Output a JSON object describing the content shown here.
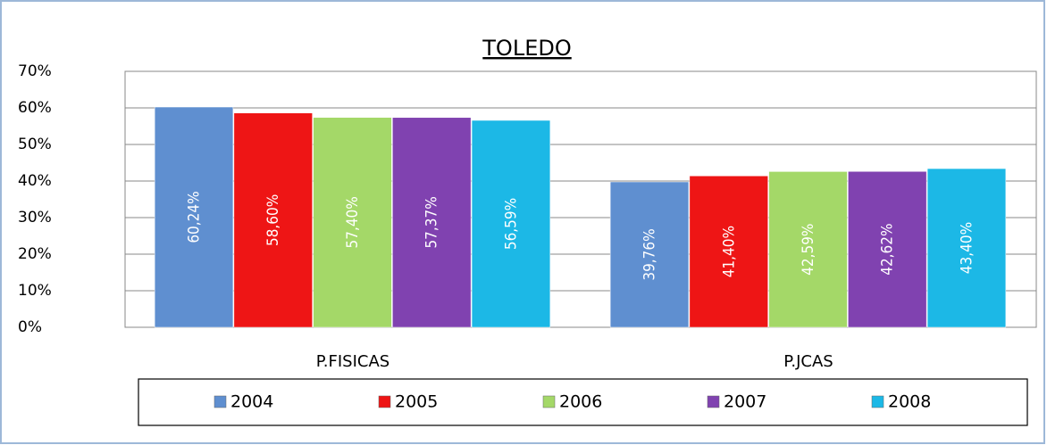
{
  "chart_data": {
    "type": "bar",
    "title": "TOLEDO",
    "categories": [
      "P.FISICAS",
      "P.JCAS"
    ],
    "series": [
      {
        "name": "2004",
        "color": "#5f8fd0",
        "values": [
          60.24,
          39.76
        ],
        "value_labels": [
          "60,24%",
          "39,76%"
        ]
      },
      {
        "name": "2005",
        "color": "#ee1515",
        "values": [
          58.6,
          41.4
        ],
        "value_labels": [
          "58,60%",
          "41,40%"
        ]
      },
      {
        "name": "2006",
        "color": "#a4d868",
        "values": [
          57.4,
          42.59
        ],
        "value_labels": [
          "57,40%",
          "42,59%"
        ]
      },
      {
        "name": "2007",
        "color": "#8042b0",
        "values": [
          57.37,
          42.62
        ],
        "value_labels": [
          "57,37%",
          "42,62%"
        ]
      },
      {
        "name": "2008",
        "color": "#1cb8e6",
        "values": [
          56.59,
          43.4
        ],
        "value_labels": [
          "56,59%",
          "43,40%"
        ]
      }
    ],
    "ylim": [
      0,
      70
    ],
    "yticks": [
      {
        "value": 0,
        "label": "0%"
      },
      {
        "value": 10,
        "label": "10%"
      },
      {
        "value": 20,
        "label": "20%"
      },
      {
        "value": 30,
        "label": "30%"
      },
      {
        "value": 40,
        "label": "40%"
      },
      {
        "value": 50,
        "label": "50%"
      },
      {
        "value": 60,
        "label": "60%"
      },
      {
        "value": 70,
        "label": "70%"
      }
    ],
    "grid": true,
    "legend": "bottom"
  }
}
